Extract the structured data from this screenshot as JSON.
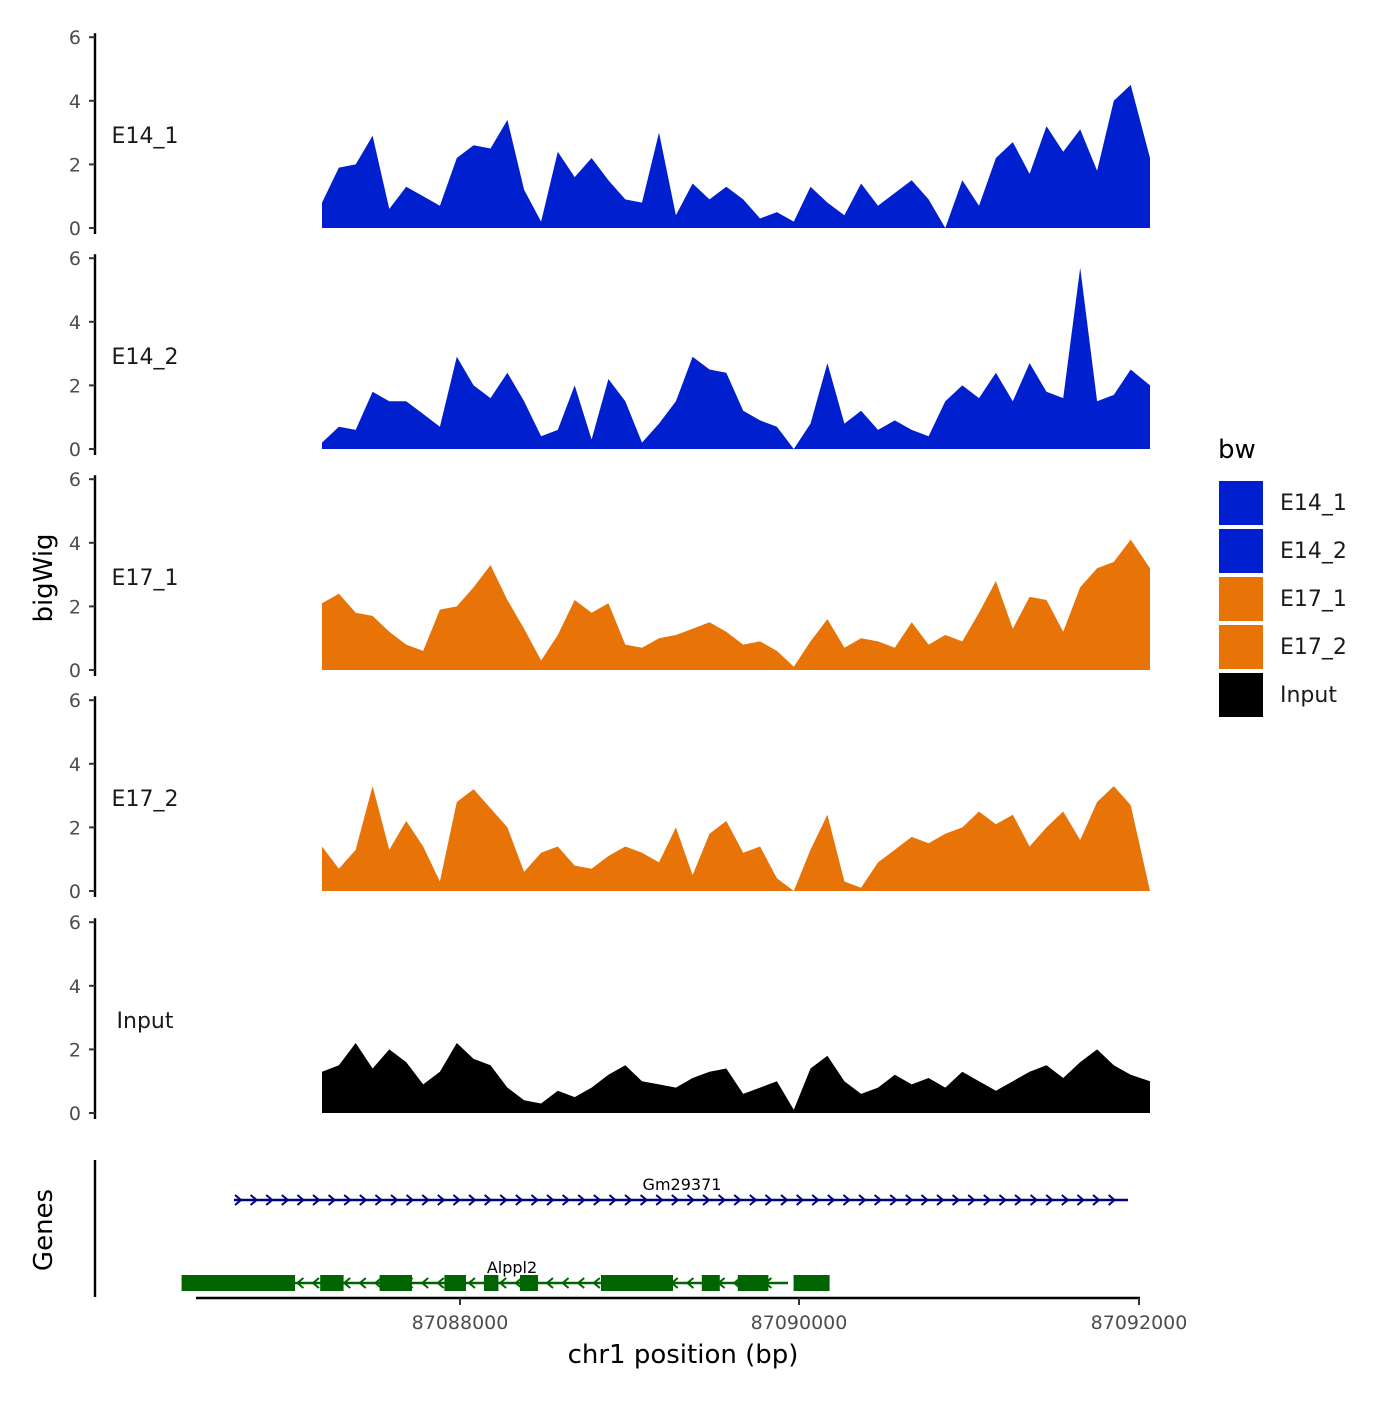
{
  "chart_data": {
    "type": "area",
    "title": "",
    "xlabel": "chr1 position (bp)",
    "ylabel": "bigWig",
    "genes_label": "Genes",
    "xlim": [
      87086600,
      87092000
    ],
    "ylim": [
      0,
      6
    ],
    "x_ticks": [
      87088000,
      87090000,
      87092000
    ],
    "x_tick_labels": [
      "87088000",
      "87090000",
      "87092000"
    ],
    "y_ticks": [
      0,
      2,
      4,
      6
    ],
    "y_tick_labels": [
      "0",
      "2",
      "4",
      "6"
    ],
    "legend": {
      "title": "bw",
      "entries": [
        {
          "label": "E14_1",
          "color": "#0020D0"
        },
        {
          "label": "E14_2",
          "color": "#0020D0"
        },
        {
          "label": "E17_1",
          "color": "#E87306"
        },
        {
          "label": "E17_2",
          "color": "#E87306"
        },
        {
          "label": "Input",
          "color": "#000000"
        }
      ]
    },
    "track_x": [
      87087300,
      87087394,
      87087487,
      87087581,
      87087674,
      87087768,
      87087862,
      87087955,
      87088049,
      87088142,
      87088236,
      87088330,
      87088423,
      87088517,
      87088610,
      87088704,
      87088798,
      87088891,
      87088985,
      87089078,
      87089172,
      87089266,
      87089359,
      87089453,
      87089546,
      87089640,
      87089734,
      87089827,
      87089921,
      87090014,
      87090108,
      87090202,
      87090295,
      87090389,
      87090482,
      87090576,
      87090670,
      87090763,
      87090857,
      87090950,
      87091044,
      87091138,
      87091231,
      87091325,
      87091418,
      87091512,
      87091606,
      87091699,
      87091793,
      87091900
    ],
    "series": [
      {
        "name": "E14_1",
        "color": "#0020D0",
        "values": [
          0.8,
          1.9,
          2.0,
          2.9,
          0.6,
          1.3,
          1.0,
          0.7,
          2.2,
          2.6,
          2.5,
          3.4,
          1.2,
          0.2,
          2.4,
          1.6,
          2.2,
          1.5,
          0.9,
          0.8,
          3.0,
          0.4,
          1.4,
          0.9,
          1.3,
          0.9,
          0.3,
          0.5,
          0.2,
          1.3,
          0.8,
          0.4,
          1.4,
          0.7,
          1.1,
          1.5,
          0.9,
          0.0,
          1.5,
          0.7,
          2.2,
          2.7,
          1.7,
          3.2,
          2.4,
          3.1,
          1.8,
          4.0,
          4.5,
          2.2
        ]
      },
      {
        "name": "E14_2",
        "color": "#0020D0",
        "values": [
          0.2,
          0.7,
          0.6,
          1.8,
          1.5,
          1.5,
          1.1,
          0.7,
          2.9,
          2.0,
          1.6,
          2.4,
          1.5,
          0.4,
          0.6,
          2.0,
          0.3,
          2.2,
          1.5,
          0.2,
          0.8,
          1.5,
          2.9,
          2.5,
          2.4,
          1.2,
          0.9,
          0.7,
          0.0,
          0.8,
          2.7,
          0.8,
          1.2,
          0.6,
          0.9,
          0.6,
          0.4,
          1.5,
          2.0,
          1.6,
          2.4,
          1.5,
          2.7,
          1.8,
          1.6,
          5.7,
          1.5,
          1.7,
          2.5,
          2.0
        ]
      },
      {
        "name": "E17_1",
        "color": "#E87306",
        "values": [
          2.1,
          2.4,
          1.8,
          1.7,
          1.2,
          0.8,
          0.6,
          1.9,
          2.0,
          2.6,
          3.3,
          2.2,
          1.3,
          0.3,
          1.1,
          2.2,
          1.8,
          2.1,
          0.8,
          0.7,
          1.0,
          1.1,
          1.3,
          1.5,
          1.2,
          0.8,
          0.9,
          0.6,
          0.1,
          0.9,
          1.6,
          0.7,
          1.0,
          0.9,
          0.7,
          1.5,
          0.8,
          1.1,
          0.9,
          1.8,
          2.8,
          1.3,
          2.3,
          2.2,
          1.2,
          2.6,
          3.2,
          3.4,
          4.1,
          3.2
        ]
      },
      {
        "name": "E17_2",
        "color": "#E87306",
        "values": [
          1.4,
          0.7,
          1.3,
          3.3,
          1.3,
          2.2,
          1.4,
          0.3,
          2.8,
          3.2,
          2.6,
          2.0,
          0.6,
          1.2,
          1.4,
          0.8,
          0.7,
          1.1,
          1.4,
          1.2,
          0.9,
          2.0,
          0.5,
          1.8,
          2.2,
          1.2,
          1.4,
          0.4,
          0.0,
          1.3,
          2.4,
          0.3,
          0.1,
          0.9,
          1.3,
          1.7,
          1.5,
          1.8,
          2.0,
          2.5,
          2.1,
          2.4,
          1.4,
          2.0,
          2.5,
          1.6,
          2.8,
          3.3,
          2.7,
          0.0
        ]
      },
      {
        "name": "Input",
        "color": "#000000",
        "values": [
          1.3,
          1.5,
          2.2,
          1.4,
          2.0,
          1.6,
          0.9,
          1.3,
          2.2,
          1.7,
          1.5,
          0.8,
          0.4,
          0.3,
          0.7,
          0.5,
          0.8,
          1.2,
          1.5,
          1.0,
          0.9,
          0.8,
          1.1,
          1.3,
          1.4,
          0.6,
          0.8,
          1.0,
          0.1,
          1.4,
          1.8,
          1.0,
          0.6,
          0.8,
          1.2,
          0.9,
          1.1,
          0.8,
          1.3,
          1.0,
          0.7,
          1.0,
          1.3,
          1.5,
          1.1,
          1.6,
          2.0,
          1.5,
          1.2,
          1.0
        ]
      }
    ],
    "genes": [
      {
        "name": "Gm29371",
        "color": "#000080",
        "strand": "+",
        "start": 87086500,
        "end": 87092000,
        "exons": []
      },
      {
        "name": "Alppl2",
        "color": "#006400",
        "strand": "-",
        "start": 87086500,
        "end": 87090200,
        "exons": [
          [
            87086520,
            87087150
          ],
          [
            87087290,
            87087420
          ],
          [
            87087620,
            87087800
          ],
          [
            87087980,
            87088100
          ],
          [
            87088200,
            87088280
          ],
          [
            87088400,
            87088500
          ],
          [
            87088850,
            87089250
          ],
          [
            87089410,
            87089510
          ],
          [
            87089610,
            87089780
          ],
          [
            87089920,
            87090120
          ]
        ]
      }
    ]
  }
}
